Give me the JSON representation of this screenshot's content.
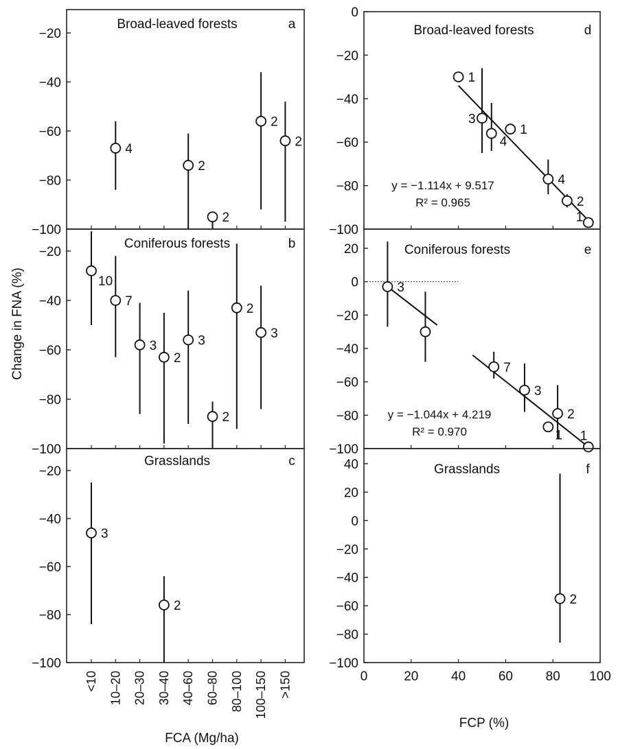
{
  "figure": {
    "ylabel": "Change in FNA (%)",
    "xlabel_left": "FCA (Mg/ha)",
    "xlabel_right": "FCP (%)"
  },
  "chart_data": [
    {
      "id": "a",
      "type": "scatter",
      "title": "Broad-leaved forests",
      "letter": "a",
      "xcats": [
        "<10",
        "10–20",
        "20–30",
        "30–40",
        "40–60",
        "60–80",
        "80–100",
        "100–150",
        ">150"
      ],
      "ylim": [
        -100,
        -20
      ],
      "yticks": [
        -20,
        -40,
        -60,
        -80,
        -100
      ],
      "points": [
        {
          "x": 1,
          "y": -67,
          "lo": -84,
          "hi": -56,
          "n": "4"
        },
        {
          "x": 4,
          "y": -74,
          "lo": -100,
          "hi": -61,
          "n": "2"
        },
        {
          "x": 5,
          "y": -95,
          "lo": -100,
          "hi": -95,
          "n": "2"
        },
        {
          "x": 7,
          "y": -56,
          "lo": -92,
          "hi": -36,
          "n": "2"
        },
        {
          "x": 8,
          "y": -64,
          "lo": -97,
          "hi": -48,
          "n": "2"
        }
      ]
    },
    {
      "id": "b",
      "type": "scatter",
      "title": "Coniferous forests",
      "letter": "b",
      "ylim": [
        -100,
        -20
      ],
      "yticks": [
        -20,
        -40,
        -60,
        -80,
        -100
      ],
      "points": [
        {
          "x": 0,
          "y": -28,
          "lo": -50,
          "hi": -12,
          "n": "10"
        },
        {
          "x": 1,
          "y": -40,
          "lo": -63,
          "hi": -22,
          "n": "7"
        },
        {
          "x": 2,
          "y": -58,
          "lo": -86,
          "hi": -41,
          "n": "3"
        },
        {
          "x": 3,
          "y": -63,
          "lo": -98,
          "hi": -45,
          "n": "2"
        },
        {
          "x": 4,
          "y": -56,
          "lo": -90,
          "hi": -36,
          "n": "3"
        },
        {
          "x": 5,
          "y": -87,
          "lo": -100,
          "hi": -81,
          "n": "2"
        },
        {
          "x": 6,
          "y": -43,
          "lo": -92,
          "hi": -17,
          "n": "2"
        },
        {
          "x": 7,
          "y": -53,
          "lo": -84,
          "hi": -34,
          "n": "3"
        }
      ]
    },
    {
      "id": "c",
      "type": "scatter",
      "title": "Grasslands",
      "letter": "c",
      "ylim": [
        -100,
        -20
      ],
      "yticks": [
        -20,
        -40,
        -60,
        -80,
        -100
      ],
      "points": [
        {
          "x": 0,
          "y": -46,
          "lo": -84,
          "hi": -25,
          "n": "3"
        },
        {
          "x": 3,
          "y": -76,
          "lo": -100,
          "hi": -64,
          "n": "2"
        }
      ]
    },
    {
      "id": "d",
      "type": "scatter",
      "title": "Broad-leaved forests",
      "letter": "d",
      "xlim": [
        0,
        100
      ],
      "ylim": [
        -100,
        0
      ],
      "yticks": [
        0,
        -20,
        -40,
        -60,
        -80,
        -100
      ],
      "points": [
        {
          "x": 40,
          "y": -30,
          "lo": -30,
          "hi": -30,
          "n": "1"
        },
        {
          "x": 50,
          "y": -49,
          "lo": -65,
          "hi": -26,
          "n": "3"
        },
        {
          "x": 54,
          "y": -56,
          "lo": -64,
          "hi": -42,
          "n": "4"
        },
        {
          "x": 62,
          "y": -54,
          "lo": -54,
          "hi": -54,
          "n": "1"
        },
        {
          "x": 78,
          "y": -77,
          "lo": -84,
          "hi": -68,
          "n": "4"
        },
        {
          "x": 86,
          "y": -87,
          "lo": -90,
          "hi": -84,
          "n": "2"
        },
        {
          "x": 95,
          "y": -97,
          "lo": -97,
          "hi": -97,
          "n": "1"
        }
      ],
      "fit": {
        "x": [
          40,
          95
        ],
        "y": [
          -34,
          -96
        ]
      },
      "equation": "y = −1.114x + 9.517",
      "r2": "R² = 0.965"
    },
    {
      "id": "e",
      "type": "scatter",
      "title": "Coniferous forests",
      "letter": "e",
      "xlim": [
        0,
        100
      ],
      "ylim": [
        -100,
        20
      ],
      "yticks": [
        20,
        0,
        -20,
        -40,
        -60,
        -80,
        -100
      ],
      "points": [
        {
          "x": 10,
          "y": -3,
          "lo": -27,
          "hi": 24,
          "n": "3"
        },
        {
          "x": 26,
          "y": -30,
          "lo": -48,
          "hi": -6,
          "n": ""
        },
        {
          "x": 55,
          "y": -51,
          "lo": -58,
          "hi": -42,
          "n": "7"
        },
        {
          "x": 68,
          "y": -65,
          "lo": -78,
          "hi": -49,
          "n": "3"
        },
        {
          "x": 82,
          "y": -79,
          "lo": -94,
          "hi": -62,
          "n": "2"
        },
        {
          "x": 78,
          "y": -87,
          "lo": -87,
          "hi": -87,
          "n": "1"
        },
        {
          "x": 95,
          "y": -99,
          "lo": -99,
          "hi": -99,
          "n": "1"
        }
      ],
      "fits": [
        {
          "x": [
            10,
            31
          ],
          "y": [
            -3,
            -26
          ]
        },
        {
          "x": [
            46,
            95
          ],
          "y": [
            -44,
            -99
          ]
        }
      ],
      "zero_line": {
        "x": [
          0,
          40
        ],
        "y": [
          0,
          0
        ]
      },
      "equation": "y = −1.044x + 4.219",
      "r2": "R² = 0.970"
    },
    {
      "id": "f",
      "type": "scatter",
      "title": "Grasslands",
      "letter": "f",
      "xlim": [
        0,
        100
      ],
      "ylim": [
        -100,
        40
      ],
      "xticks": [
        0,
        20,
        40,
        60,
        80,
        100
      ],
      "yticks": [
        40,
        20,
        0,
        -20,
        -40,
        -60,
        -80,
        -100
      ],
      "points": [
        {
          "x": 83,
          "y": -55,
          "lo": -86,
          "hi": 33,
          "n": "2"
        }
      ]
    }
  ]
}
